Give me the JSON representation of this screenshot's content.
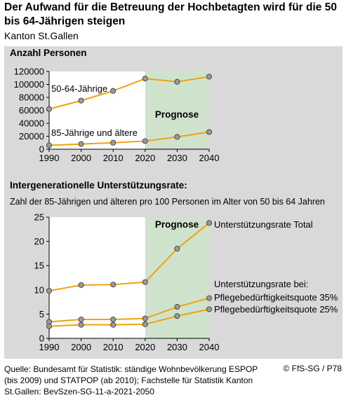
{
  "title": "Der Aufwand für die Betreuung der Hochbetagten wird für die 50 bis 64-Jährigen steigen",
  "subtitle": "Kanton St.Gallen",
  "source": "Quelle: Bundesamt für Statistik: ständige Wohnbevölkerung ESPOP (bis 2009) und STATPOP (ab 2010); Fachstelle für Statistik Kanton St.Gallen: BevSzen-SG-11-a-2021-2050",
  "copyright": "© FfS-SG / P78",
  "colors": {
    "line": "#f0a30a",
    "marker": "#999999",
    "forecast": "#cfe3cc",
    "panel": "#d9d9d9",
    "plot": "#ffffff"
  },
  "chart_data": [
    {
      "type": "line",
      "title": "Anzahl Personen",
      "x": [
        1990,
        2000,
        2010,
        2020,
        2030,
        2040
      ],
      "ylim": [
        0,
        120000
      ],
      "yticks": [
        0,
        20000,
        40000,
        60000,
        80000,
        100000,
        120000
      ],
      "ytick_labels": [
        "0",
        "20000",
        "40000",
        "60000",
        "80000",
        "100000",
        "120000"
      ],
      "forecast_label": "Prognose",
      "forecast_range": [
        2020,
        2040
      ],
      "series": [
        {
          "name": "50-64-Jährige",
          "values": [
            62000,
            75000,
            90000,
            109000,
            104000,
            112000
          ]
        },
        {
          "name": "85-Jährige und ältere",
          "values": [
            6000,
            8000,
            10000,
            12500,
            19000,
            26500
          ]
        }
      ]
    },
    {
      "type": "line",
      "title": "Intergenerationelle Unterstützungsrate:",
      "subtitle": "Zahl der 85-Jährigen und älteren pro 100 Personen im Alter von 50 bis 64 Jahren",
      "x": [
        1990,
        2000,
        2010,
        2020,
        2030,
        2040
      ],
      "ylim": [
        0,
        25
      ],
      "yticks": [
        0,
        5,
        10,
        15,
        20,
        25
      ],
      "ytick_labels": [
        "0",
        "5",
        "10",
        "15",
        "20",
        "25"
      ],
      "forecast_label": "Prognose",
      "forecast_range": [
        2020,
        2040
      ],
      "annotation": "Unterstützungsrate bei:",
      "series": [
        {
          "name": "Unterstützungsrate Total",
          "values": [
            9.8,
            11.0,
            11.1,
            11.6,
            18.5,
            23.8
          ]
        },
        {
          "name": "Pflegebedürftigkeitsquote 35%",
          "values": [
            3.4,
            3.9,
            3.9,
            4.1,
            6.5,
            8.3
          ]
        },
        {
          "name": "Pflegebedürftigkeitsquote 25%",
          "values": [
            2.5,
            2.8,
            2.8,
            2.9,
            4.6,
            6.0
          ]
        }
      ]
    }
  ]
}
